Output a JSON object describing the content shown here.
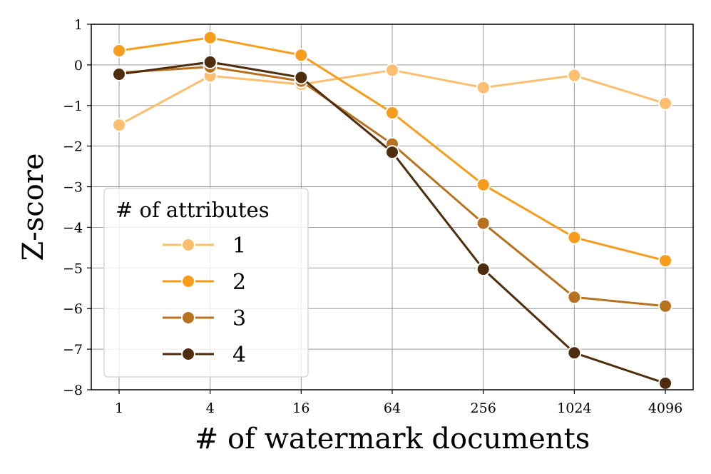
{
  "chart_data": {
    "type": "line",
    "xlabel": "# of watermark documents",
    "ylabel": "Z-score",
    "x_scale": "log2",
    "categories": [
      "1",
      "4",
      "16",
      "64",
      "256",
      "1024",
      "4096"
    ],
    "x": [
      1,
      4,
      16,
      64,
      256,
      1024,
      4096
    ],
    "ylim": [
      -8,
      1
    ],
    "yticks": [
      1,
      0,
      -1,
      -2,
      -3,
      -4,
      -5,
      -6,
      -7,
      -8
    ],
    "grid": true,
    "legend": {
      "title": "# of attributes",
      "placement": "lower-left"
    },
    "series": [
      {
        "name": "1",
        "color": "#fdbf6f",
        "values": [
          -1.48,
          -0.27,
          -0.48,
          -0.13,
          -0.56,
          -0.26,
          -0.95
        ]
      },
      {
        "name": "2",
        "color": "#f89c1c",
        "values": [
          0.35,
          0.67,
          0.24,
          -1.18,
          -2.95,
          -4.25,
          -4.82
        ]
      },
      {
        "name": "3",
        "color": "#b8721f",
        "values": [
          -0.19,
          -0.05,
          -0.4,
          -1.95,
          -3.9,
          -5.72,
          -5.94
        ]
      },
      {
        "name": "4",
        "color": "#4e2d0e",
        "values": [
          -0.23,
          0.07,
          -0.31,
          -2.15,
          -5.03,
          -7.09,
          -7.84
        ]
      }
    ]
  }
}
